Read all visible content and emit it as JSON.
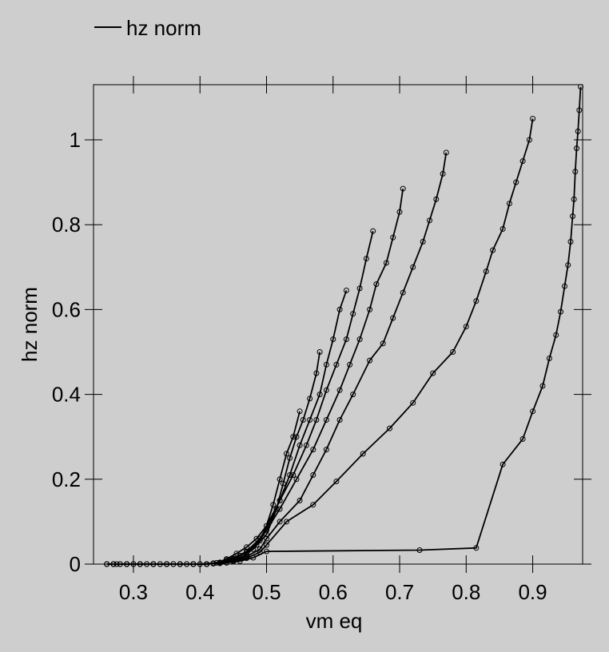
{
  "colors": {
    "background": "#cecece",
    "foreground": "#000000"
  },
  "chart_data": {
    "type": "line",
    "title": "",
    "xlabel": "vm eq",
    "ylabel": "hz norm",
    "xlim": [
      0.24,
      0.975
    ],
    "ylim": [
      0,
      1.13
    ],
    "x_ticks": [
      0.3,
      0.4,
      0.5,
      0.6,
      0.7,
      0.8,
      0.9
    ],
    "x_tick_labels": [
      "0.3",
      "0.4",
      "0.5",
      "0.6",
      "0.7",
      "0.8",
      "0.9"
    ],
    "y_ticks": [
      0,
      0.2,
      0.4,
      0.6,
      0.8,
      1
    ],
    "y_tick_labels": [
      "0",
      "0.2",
      "0.4",
      "0.6",
      "0.8",
      "1"
    ],
    "grid": false,
    "legend": {
      "position": "top-left",
      "entries": [
        "hz norm"
      ]
    },
    "marker": "circle-open",
    "series": [
      {
        "points": [
          [
            0.26,
            0
          ],
          [
            0.275,
            0
          ],
          [
            0.29,
            0
          ],
          [
            0.31,
            0
          ],
          [
            0.33,
            0
          ],
          [
            0.35,
            0
          ],
          [
            0.37,
            0
          ],
          [
            0.39,
            0
          ],
          [
            0.41,
            0
          ],
          [
            0.425,
            0.003
          ],
          [
            0.44,
            0.012
          ],
          [
            0.455,
            0.025
          ],
          [
            0.47,
            0.04
          ],
          [
            0.485,
            0.06
          ],
          [
            0.5,
            0.09
          ],
          [
            0.51,
            0.14
          ],
          [
            0.52,
            0.2
          ],
          [
            0.53,
            0.26
          ],
          [
            0.54,
            0.3
          ],
          [
            0.55,
            0.36
          ]
        ]
      },
      {
        "points": [
          [
            0.26,
            0
          ],
          [
            0.28,
            0
          ],
          [
            0.3,
            0
          ],
          [
            0.32,
            0
          ],
          [
            0.34,
            0
          ],
          [
            0.36,
            0
          ],
          [
            0.38,
            0
          ],
          [
            0.4,
            0
          ],
          [
            0.42,
            0.002
          ],
          [
            0.44,
            0.01
          ],
          [
            0.46,
            0.02
          ],
          [
            0.48,
            0.035
          ],
          [
            0.5,
            0.07
          ],
          [
            0.515,
            0.13
          ],
          [
            0.525,
            0.19
          ],
          [
            0.535,
            0.25
          ],
          [
            0.545,
            0.3
          ],
          [
            0.555,
            0.34
          ],
          [
            0.565,
            0.39
          ],
          [
            0.575,
            0.45
          ],
          [
            0.58,
            0.5
          ]
        ]
      },
      {
        "points": [
          [
            0.27,
            0
          ],
          [
            0.29,
            0
          ],
          [
            0.31,
            0
          ],
          [
            0.33,
            0
          ],
          [
            0.35,
            0
          ],
          [
            0.37,
            0
          ],
          [
            0.39,
            0
          ],
          [
            0.41,
            0
          ],
          [
            0.43,
            0.004
          ],
          [
            0.45,
            0.013
          ],
          [
            0.47,
            0.03
          ],
          [
            0.49,
            0.06
          ],
          [
            0.505,
            0.1
          ],
          [
            0.52,
            0.15
          ],
          [
            0.535,
            0.21
          ],
          [
            0.55,
            0.28
          ],
          [
            0.565,
            0.34
          ],
          [
            0.58,
            0.4
          ],
          [
            0.59,
            0.47
          ],
          [
            0.6,
            0.53
          ],
          [
            0.61,
            0.6
          ],
          [
            0.62,
            0.645
          ]
        ]
      },
      {
        "points": [
          [
            0.27,
            0
          ],
          [
            0.29,
            0
          ],
          [
            0.31,
            0
          ],
          [
            0.33,
            0
          ],
          [
            0.35,
            0
          ],
          [
            0.37,
            0
          ],
          [
            0.39,
            0
          ],
          [
            0.41,
            0
          ],
          [
            0.43,
            0.004
          ],
          [
            0.45,
            0.012
          ],
          [
            0.47,
            0.028
          ],
          [
            0.49,
            0.055
          ],
          [
            0.5,
            0.09
          ],
          [
            0.52,
            0.15
          ],
          [
            0.54,
            0.21
          ],
          [
            0.56,
            0.28
          ],
          [
            0.575,
            0.34
          ],
          [
            0.59,
            0.41
          ],
          [
            0.605,
            0.47
          ],
          [
            0.62,
            0.53
          ],
          [
            0.63,
            0.59
          ],
          [
            0.64,
            0.65
          ],
          [
            0.65,
            0.72
          ],
          [
            0.66,
            0.785
          ]
        ]
      },
      {
        "points": [
          [
            0.27,
            0
          ],
          [
            0.29,
            0
          ],
          [
            0.31,
            0
          ],
          [
            0.33,
            0
          ],
          [
            0.35,
            0
          ],
          [
            0.37,
            0
          ],
          [
            0.39,
            0
          ],
          [
            0.41,
            0
          ],
          [
            0.43,
            0.003
          ],
          [
            0.45,
            0.01
          ],
          [
            0.47,
            0.022
          ],
          [
            0.485,
            0.045
          ],
          [
            0.5,
            0.08
          ],
          [
            0.52,
            0.13
          ],
          [
            0.545,
            0.2
          ],
          [
            0.57,
            0.27
          ],
          [
            0.59,
            0.34
          ],
          [
            0.61,
            0.41
          ],
          [
            0.625,
            0.47
          ],
          [
            0.64,
            0.53
          ],
          [
            0.655,
            0.6
          ],
          [
            0.665,
            0.66
          ],
          [
            0.68,
            0.71
          ],
          [
            0.69,
            0.77
          ],
          [
            0.7,
            0.83
          ],
          [
            0.705,
            0.885
          ]
        ]
      },
      {
        "points": [
          [
            0.27,
            0
          ],
          [
            0.29,
            0
          ],
          [
            0.31,
            0
          ],
          [
            0.33,
            0
          ],
          [
            0.35,
            0
          ],
          [
            0.37,
            0
          ],
          [
            0.39,
            0
          ],
          [
            0.41,
            0
          ],
          [
            0.43,
            0.002
          ],
          [
            0.45,
            0.008
          ],
          [
            0.47,
            0.018
          ],
          [
            0.49,
            0.035
          ],
          [
            0.5,
            0.06
          ],
          [
            0.52,
            0.1
          ],
          [
            0.55,
            0.15
          ],
          [
            0.57,
            0.21
          ],
          [
            0.59,
            0.27
          ],
          [
            0.61,
            0.34
          ],
          [
            0.63,
            0.4
          ],
          [
            0.655,
            0.48
          ],
          [
            0.675,
            0.52
          ],
          [
            0.69,
            0.58
          ],
          [
            0.705,
            0.64
          ],
          [
            0.72,
            0.7
          ],
          [
            0.735,
            0.76
          ],
          [
            0.745,
            0.81
          ],
          [
            0.755,
            0.86
          ],
          [
            0.765,
            0.92
          ],
          [
            0.77,
            0.97
          ]
        ]
      },
      {
        "points": [
          [
            0.27,
            0
          ],
          [
            0.29,
            0
          ],
          [
            0.31,
            0
          ],
          [
            0.33,
            0
          ],
          [
            0.35,
            0
          ],
          [
            0.37,
            0
          ],
          [
            0.39,
            0
          ],
          [
            0.41,
            0
          ],
          [
            0.43,
            0.002
          ],
          [
            0.45,
            0.006
          ],
          [
            0.47,
            0.014
          ],
          [
            0.49,
            0.028
          ],
          [
            0.5,
            0.045
          ],
          [
            0.53,
            0.1
          ],
          [
            0.57,
            0.14
          ],
          [
            0.605,
            0.195
          ],
          [
            0.645,
            0.26
          ],
          [
            0.685,
            0.32
          ],
          [
            0.72,
            0.38
          ],
          [
            0.75,
            0.45
          ],
          [
            0.78,
            0.5
          ],
          [
            0.8,
            0.56
          ],
          [
            0.815,
            0.62
          ],
          [
            0.83,
            0.69
          ],
          [
            0.84,
            0.74
          ],
          [
            0.855,
            0.79
          ],
          [
            0.865,
            0.85
          ],
          [
            0.875,
            0.9
          ],
          [
            0.885,
            0.95
          ],
          [
            0.895,
            1
          ],
          [
            0.9,
            1.05
          ]
        ]
      },
      {
        "points": [
          [
            0.26,
            0
          ],
          [
            0.28,
            0
          ],
          [
            0.3,
            0
          ],
          [
            0.32,
            0
          ],
          [
            0.34,
            0
          ],
          [
            0.36,
            0
          ],
          [
            0.38,
            0
          ],
          [
            0.4,
            0
          ],
          [
            0.42,
            0.001
          ],
          [
            0.44,
            0.003
          ],
          [
            0.46,
            0.007
          ],
          [
            0.48,
            0.015
          ],
          [
            0.5,
            0.03
          ],
          [
            0.73,
            0.033
          ],
          [
            0.815,
            0.038
          ],
          [
            0.855,
            0.235
          ],
          [
            0.885,
            0.295
          ],
          [
            0.9,
            0.36
          ],
          [
            0.915,
            0.42
          ],
          [
            0.925,
            0.485
          ],
          [
            0.935,
            0.54
          ],
          [
            0.942,
            0.595
          ],
          [
            0.948,
            0.655
          ],
          [
            0.953,
            0.705
          ],
          [
            0.957,
            0.76
          ],
          [
            0.96,
            0.82
          ],
          [
            0.962,
            0.86
          ],
          [
            0.964,
            0.925
          ],
          [
            0.966,
            0.98
          ],
          [
            0.968,
            1.02
          ],
          [
            0.97,
            1.07
          ],
          [
            0.972,
            1.125
          ]
        ]
      }
    ]
  }
}
